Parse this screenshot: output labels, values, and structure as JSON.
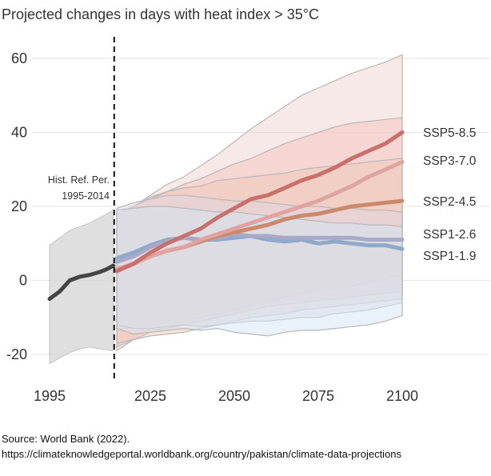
{
  "chart_data": {
    "type": "line",
    "title": "Projected changes in days with heat index > 35°C",
    "xlabel": "",
    "ylabel": "",
    "x_ticks": [
      1995,
      2025,
      2050,
      2075,
      2100
    ],
    "y_ticks": [
      60,
      40,
      20,
      0,
      -20
    ],
    "xlim": [
      1995,
      2100
    ],
    "ylim": [
      -25,
      62
    ],
    "grid": "horizontal",
    "reference_line": {
      "x": 2014,
      "label_line1": "Hist. Ref. Per.",
      "label_line2": "1995-2014"
    },
    "historical": {
      "x": [
        1995,
        1998,
        2001,
        2004,
        2007,
        2010,
        2012,
        2014
      ],
      "median": [
        -5,
        -3,
        0,
        1,
        1.5,
        2.3,
        3,
        4
      ],
      "upper": [
        9.5,
        11.5,
        13.5,
        14.5,
        15.5,
        17,
        18,
        19
      ],
      "lower": [
        -22.5,
        -21,
        -19.5,
        -18.5,
        -18,
        -18.5,
        -18.8,
        -19
      ]
    },
    "x": [
      2015,
      2020,
      2025,
      2030,
      2035,
      2040,
      2045,
      2050,
      2055,
      2060,
      2065,
      2070,
      2075,
      2080,
      2085,
      2090,
      2095,
      2100
    ],
    "series": [
      {
        "name": "SSP1-1.9",
        "color": "#8fa9c8",
        "band_color": "#d4e6f4",
        "median": [
          6,
          7.5,
          9.5,
          11,
          11.5,
          11,
          11,
          11.5,
          12,
          11,
          10.5,
          11,
          10,
          10.5,
          10,
          9.5,
          9.5,
          8.5
        ],
        "upper": [
          19,
          19.5,
          20,
          20,
          19.5,
          19,
          18.5,
          18.5,
          18,
          17.5,
          17,
          16.5,
          16,
          15.5,
          15.5,
          15,
          15,
          14.5
        ],
        "lower": [
          -13,
          -14.5,
          -14,
          -13.5,
          -13,
          -13.5,
          -13,
          -14,
          -14.5,
          -15,
          -14,
          -13.5,
          -13.5,
          -13,
          -12.5,
          -12,
          -11,
          -9.5
        ]
      },
      {
        "name": "SSP1-2.6",
        "color": "#a8a8c8",
        "band_color": "#ddd6e2",
        "median": [
          5,
          6.5,
          9,
          10.5,
          11.5,
          11,
          11.5,
          12.5,
          12,
          12,
          11.5,
          11.5,
          11.5,
          11.5,
          11.5,
          11,
          11,
          11
        ],
        "upper": [
          19.5,
          21,
          22,
          23,
          23,
          22.5,
          22,
          21.5,
          21.5,
          21,
          20.5,
          20,
          20,
          19.5,
          19.5,
          19,
          19,
          18.5
        ],
        "lower": [
          -12,
          -13,
          -13,
          -12.5,
          -12,
          -12.5,
          -12,
          -11.5,
          -11,
          -11,
          -10.5,
          -10,
          -10,
          -9,
          -8.5,
          -8,
          -7,
          -6
        ]
      },
      {
        "name": "SSP2-4.5",
        "color": "#c98a6c",
        "band_color": "#efc8b8",
        "median": [
          3,
          4.5,
          6.5,
          8,
          9,
          10.5,
          12,
          13,
          14,
          15,
          16.5,
          17.5,
          18,
          19,
          20,
          20.5,
          21,
          21.5
        ],
        "upper": [
          18,
          20,
          22,
          24,
          25,
          25.5,
          27,
          27.5,
          28,
          28.5,
          29,
          30,
          30.5,
          31,
          31.5,
          32,
          32.5,
          33
        ],
        "lower": [
          -17,
          -16,
          -15,
          -14.5,
          -14,
          -13,
          -12,
          -11,
          -10,
          -9.5,
          -9,
          -8,
          -7.5,
          -7,
          -6.5,
          -6,
          -5.5,
          -5
        ]
      },
      {
        "name": "SSP3-7.0",
        "color": "#e0a3a0",
        "band_color": "#f1c3bd",
        "median": [
          3,
          4.5,
          6.5,
          8,
          9,
          11,
          12.5,
          14,
          15.5,
          17,
          18.5,
          20,
          21.5,
          23.5,
          25.5,
          28,
          30,
          32
        ],
        "upper": [
          18,
          20,
          22.5,
          24,
          26,
          27.5,
          29.5,
          31.5,
          33,
          35,
          37,
          38.5,
          40,
          41.5,
          42.5,
          43,
          43.5,
          44
        ],
        "lower": [
          -18,
          -16,
          -14,
          -13,
          -12,
          -11,
          -10,
          -9,
          -8,
          -7,
          -6.5,
          -6,
          -5.5,
          -5,
          -4.5,
          -4,
          -3.5,
          -3
        ]
      },
      {
        "name": "SSP5-8.5",
        "color": "#c9706c",
        "band_color": "#f2d4d4",
        "median": [
          2.5,
          4.5,
          7.5,
          10,
          12,
          14,
          17,
          19.5,
          22,
          23,
          25,
          27,
          28.5,
          30.5,
          33,
          35,
          37,
          40
        ],
        "upper": [
          18,
          20,
          23,
          26,
          28,
          31,
          34,
          37.5,
          41,
          44,
          47,
          50,
          52,
          54,
          56,
          57.5,
          59,
          61
        ],
        "lower": [
          -19,
          -16,
          -14,
          -12.5,
          -11,
          -10,
          -9,
          -8,
          -6.5,
          -5.5,
          -4.5,
          -3.5,
          -2.5,
          -2,
          -1.5,
          -0.5,
          0.5,
          1.5
        ]
      }
    ],
    "legend_placement": "right",
    "legend_order": [
      "SSP5-8.5",
      "SSP3-7.0",
      "SSP2-4.5",
      "SSP1-2.6",
      "SSP1-1.9"
    ]
  },
  "source": {
    "line1": "Source: World Bank (2022).",
    "line2": "https://climateknowledgeportal.worldbank.org/country/pakistan/climate-data-projections"
  }
}
